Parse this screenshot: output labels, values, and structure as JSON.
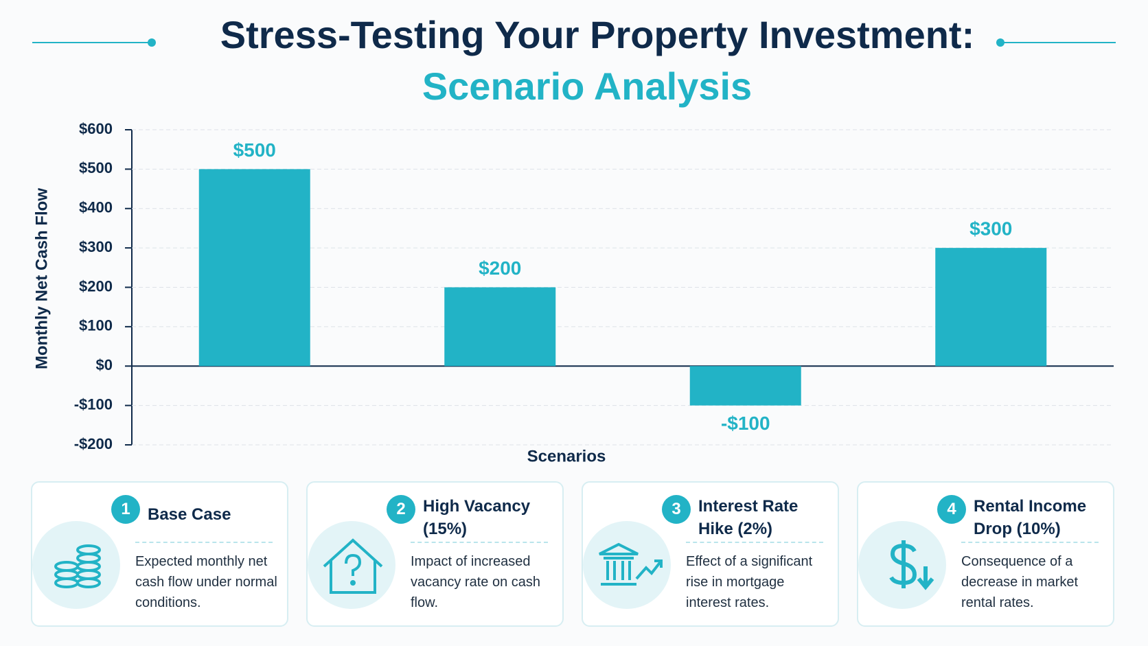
{
  "chart_data": {
    "type": "bar",
    "title": "Stress-Testing Your Property Investment:",
    "subtitle": "Scenario Analysis",
    "x_label": "Scenarios",
    "y_label": "Monthly Net Cash Flow",
    "categories": [
      null,
      null,
      null,
      null
    ],
    "values": [
      500,
      200,
      -100,
      300
    ],
    "value_labels": [
      "$500",
      "$200",
      "-$100",
      "$300"
    ],
    "color": "#22b3c6",
    "ylim": [
      -200,
      600
    ],
    "yticks": [
      {
        "value": -200,
        "label": "-$200"
      },
      {
        "value": -100,
        "label": "-$100"
      },
      {
        "value": 0,
        "label": "$0"
      },
      {
        "value": 100,
        "label": "$100"
      },
      {
        "value": 200,
        "label": "$200"
      },
      {
        "value": 300,
        "label": "$300"
      },
      {
        "value": 400,
        "label": "$400"
      },
      {
        "value": 500,
        "label": "$500"
      },
      {
        "value": 600,
        "label": "$600"
      }
    ],
    "grid": true
  },
  "cards": [
    {
      "number": "1",
      "title": "Base Case",
      "description": "Expected monthly net cash flow under normal conditions."
    },
    {
      "number": "2",
      "title": "High Vacancy (15%)",
      "description": "Impact of increased vacancy rate on cash flow."
    },
    {
      "number": "3",
      "title": "Interest Rate Hike (2%)",
      "description": "Effect of a significant rise in mortgage interest rates."
    },
    {
      "number": "4",
      "title": "Rental Income Drop (10%)",
      "description": "Consequence of a decrease in market rental rates."
    }
  ]
}
